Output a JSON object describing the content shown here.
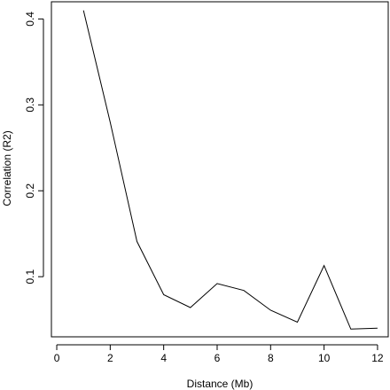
{
  "chart_data": {
    "type": "line",
    "title": "",
    "xlabel": "Distance (Mb)",
    "ylabel": "Correlation (R2)",
    "xlim": [
      -0.2,
      12.4
    ],
    "ylim": [
      0.03,
      0.42
    ],
    "x_ticks": [
      0,
      2,
      4,
      6,
      8,
      10,
      12
    ],
    "x_tick_labels": [
      "0",
      "2",
      "4",
      "6",
      "8",
      "10",
      "12"
    ],
    "y_ticks": [
      0.1,
      0.2,
      0.3,
      0.4
    ],
    "y_tick_labels": [
      "0.1",
      "0.2",
      "0.3",
      "0.4"
    ],
    "grid": false,
    "series": [
      {
        "x": [
          1,
          2,
          3,
          4,
          5,
          6,
          7,
          8,
          9,
          10,
          11,
          12
        ],
        "y": [
          0.41,
          0.28,
          0.141,
          0.079,
          0.064,
          0.092,
          0.084,
          0.061,
          0.047,
          0.113,
          0.039,
          0.04
        ],
        "color": "#000000"
      }
    ]
  }
}
